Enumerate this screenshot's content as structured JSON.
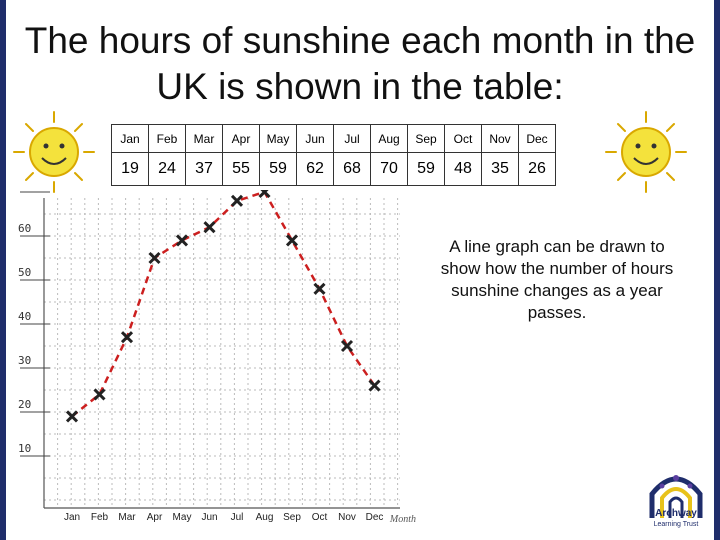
{
  "title": "The hours of sunshine each month in the UK is shown in the table:",
  "table": {
    "months": [
      "Jan",
      "Feb",
      "Mar",
      "Apr",
      "May",
      "Jun",
      "Jul",
      "Aug",
      "Sep",
      "Oct",
      "Nov",
      "Dec"
    ],
    "hours": [
      "19",
      "24",
      "37",
      "55",
      "59",
      "62",
      "68",
      "70",
      "59",
      "48",
      "35",
      "26"
    ]
  },
  "note": "A line graph can be drawn to show how the number of hours sunshine changes as a year passes.",
  "logo": {
    "name": "Archway",
    "subtitle": "Learning Trust"
  },
  "colors": {
    "line": "#cc1f1f",
    "frame": "#1f2d6b",
    "sun": "#f4e23c"
  },
  "chart_data": {
    "type": "line",
    "categories": [
      "Jan",
      "Feb",
      "Mar",
      "Apr",
      "May",
      "Jun",
      "Jul",
      "Aug",
      "Sep",
      "Oct",
      "Nov",
      "Dec"
    ],
    "values": [
      19,
      24,
      37,
      55,
      59,
      62,
      68,
      70,
      59,
      48,
      35,
      26
    ],
    "title": "",
    "xlabel": "Month",
    "ylabel": "",
    "ylim": [
      0,
      70
    ],
    "yticks": [
      "10",
      "20",
      "30",
      "40",
      "50",
      "60",
      "70"
    ],
    "grid": true,
    "line_style": "dashed",
    "marker": "cross"
  }
}
